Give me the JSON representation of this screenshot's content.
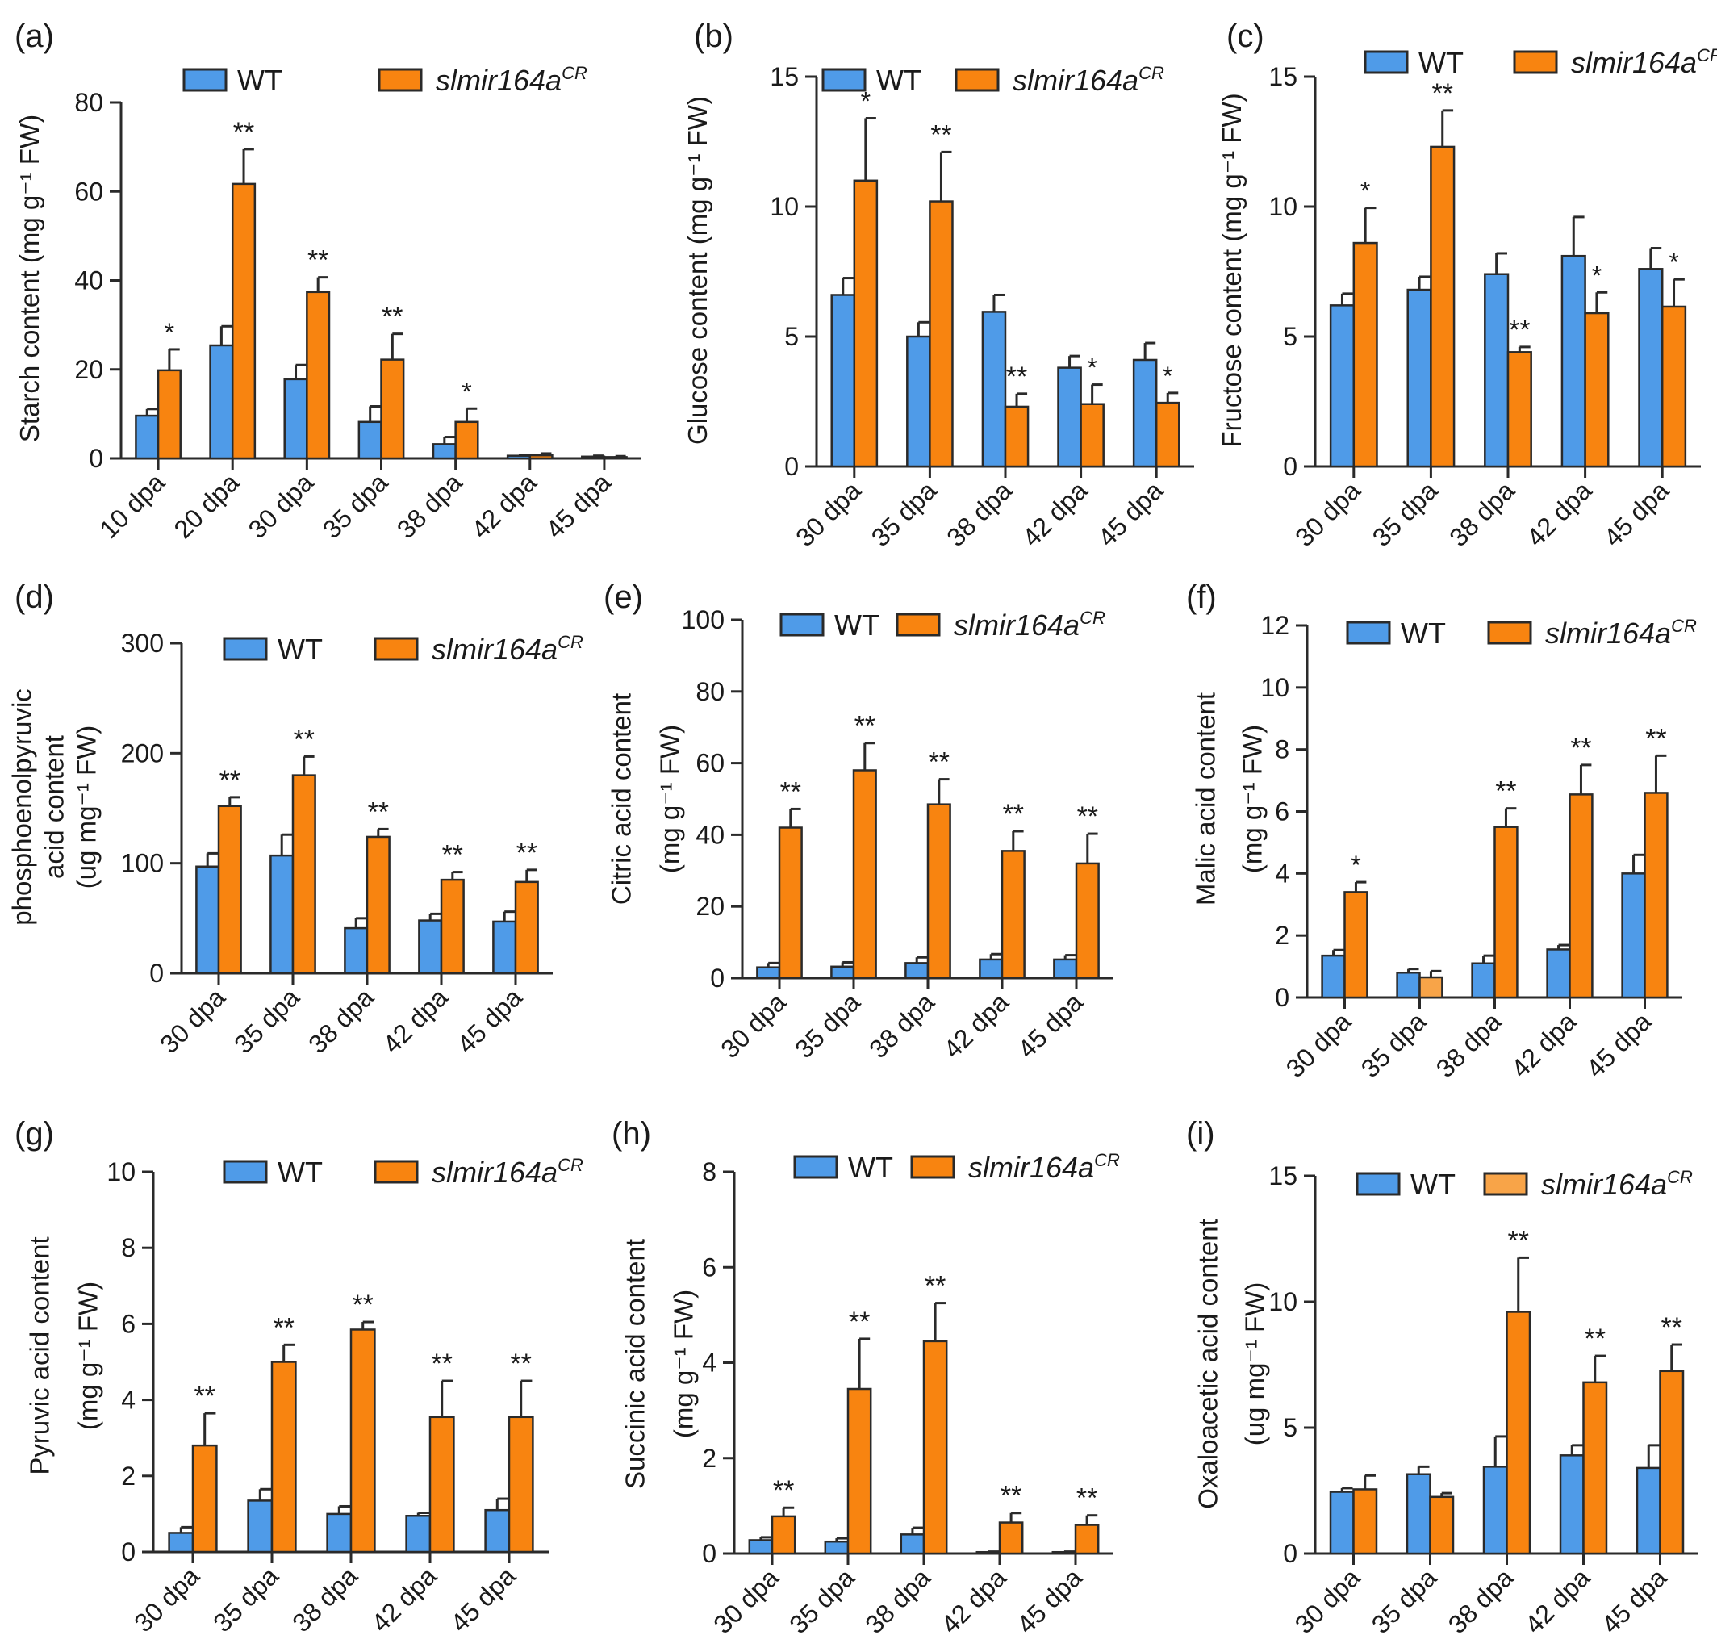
{
  "colors": {
    "wt": "#4f9be8",
    "mutant": "#f88410",
    "mutant_light": "#f8a448",
    "axis": "#2a2a2a"
  },
  "legend": {
    "wt": "WT",
    "mutant_base": "slmir164a",
    "mutant_sup": "CR"
  },
  "chart_data": [
    {
      "panel": "(a)",
      "type": "bar",
      "ylabel": "Starch content (mg g⁻¹ FW)",
      "ylim": [
        0,
        80
      ],
      "yticks": [
        0,
        20,
        40,
        60,
        80
      ],
      "categories": [
        "10 dpa",
        "20 dpa",
        "30 dpa",
        "35 dpa",
        "38 dpa",
        "42 dpa",
        "45 dpa"
      ],
      "series": [
        {
          "name": "WT",
          "values": [
            9.6,
            25.4,
            17.8,
            8.2,
            3.2,
            0.6,
            0.4
          ],
          "errors": [
            1.5,
            4.3,
            3.2,
            3.5,
            1.6,
            0.2,
            0.2
          ]
        },
        {
          "name": "slmir164aCR",
          "values": [
            19.8,
            61.7,
            37.4,
            22.2,
            8.2,
            0.7,
            0.3
          ],
          "errors": [
            4.7,
            7.8,
            3.3,
            5.8,
            3.0,
            0.4,
            0.2
          ]
        }
      ],
      "significance": [
        "*",
        "**",
        "**",
        "**",
        "*",
        "",
        ""
      ],
      "legend_position": "top"
    },
    {
      "panel": "(b)",
      "type": "bar",
      "ylabel": "Glucose content (mg g⁻¹ FW)",
      "ylim": [
        0,
        15
      ],
      "yticks": [
        0,
        5,
        10,
        15
      ],
      "categories": [
        "30 dpa",
        "35 dpa",
        "38 dpa",
        "42 dpa",
        "45 dpa"
      ],
      "series": [
        {
          "name": "WT",
          "values": [
            6.6,
            5.0,
            5.95,
            3.8,
            4.1
          ],
          "errors": [
            0.65,
            0.55,
            0.65,
            0.45,
            0.65
          ]
        },
        {
          "name": "slmir164aCR",
          "values": [
            11.0,
            10.2,
            2.3,
            2.4,
            2.45
          ],
          "errors": [
            2.4,
            1.9,
            0.5,
            0.75,
            0.38
          ]
        }
      ],
      "significance": [
        "*",
        "**",
        "**",
        "*",
        "*"
      ],
      "legend_position": "top"
    },
    {
      "panel": "(c)",
      "type": "bar",
      "ylabel": "Fructose content (mg g⁻¹ FW)",
      "ylim": [
        0,
        15
      ],
      "yticks": [
        0,
        5,
        10,
        15
      ],
      "categories": [
        "30 dpa",
        "35 dpa",
        "38 dpa",
        "42 dpa",
        "45 dpa"
      ],
      "series": [
        {
          "name": "WT",
          "values": [
            6.2,
            6.8,
            7.4,
            8.1,
            7.6
          ],
          "errors": [
            0.45,
            0.5,
            0.8,
            1.5,
            0.8
          ]
        },
        {
          "name": "slmir164aCR",
          "values": [
            8.6,
            12.3,
            4.4,
            5.9,
            6.15
          ],
          "errors": [
            1.35,
            1.4,
            0.2,
            0.8,
            1.05
          ]
        }
      ],
      "significance": [
        "*",
        "**",
        "**",
        "*",
        "*"
      ],
      "legend_position": "top"
    },
    {
      "panel": "(d)",
      "type": "bar",
      "ylabel_lines": [
        "phosphoenolpyruvic",
        "acid content",
        "(ug mg⁻¹ FW)"
      ],
      "ylim": [
        0,
        300
      ],
      "yticks": [
        0,
        100,
        200,
        300
      ],
      "categories": [
        "30 dpa",
        "35 dpa",
        "38 dpa",
        "42 dpa",
        "45 dpa"
      ],
      "series": [
        {
          "name": "WT",
          "values": [
            97,
            107,
            41,
            48,
            47
          ],
          "errors": [
            12,
            19,
            9,
            6,
            9
          ]
        },
        {
          "name": "slmir164aCR",
          "values": [
            152,
            180,
            124,
            85,
            83
          ],
          "errors": [
            8,
            17,
            7,
            7,
            11
          ]
        }
      ],
      "significance": [
        "**",
        "**",
        "**",
        "**",
        "**"
      ],
      "legend_position": "top"
    },
    {
      "panel": "(e)",
      "type": "bar",
      "ylabel_lines": [
        "Citric acid content",
        "(mg g⁻¹ FW)"
      ],
      "ylim": [
        0,
        100
      ],
      "yticks": [
        0,
        20,
        40,
        60,
        80,
        100
      ],
      "categories": [
        "30 dpa",
        "35 dpa",
        "38 dpa",
        "42 dpa",
        "45 dpa"
      ],
      "series": [
        {
          "name": "WT",
          "values": [
            3.0,
            3.2,
            4.2,
            5.2,
            5.2
          ],
          "errors": [
            1.2,
            1.2,
            1.6,
            1.5,
            1.2
          ]
        },
        {
          "name": "slmir164aCR",
          "values": [
            42,
            58,
            48.5,
            35.5,
            32
          ],
          "errors": [
            5.2,
            7.6,
            7.0,
            5.5,
            8.3
          ]
        }
      ],
      "significance": [
        "**",
        "**",
        "**",
        "**",
        "**"
      ],
      "legend_position": "top"
    },
    {
      "panel": "(f)",
      "type": "bar",
      "ylabel_lines": [
        "Malic acid content",
        "(mg g⁻¹ FW)"
      ],
      "ylim": [
        0,
        12
      ],
      "yticks": [
        0,
        2,
        4,
        6,
        8,
        10,
        12
      ],
      "categories": [
        "30 dpa",
        "35 dpa",
        "38 dpa",
        "42 dpa",
        "45 dpa"
      ],
      "series": [
        {
          "name": "WT",
          "values": [
            1.35,
            0.8,
            1.1,
            1.55,
            4.0
          ],
          "errors": [
            0.18,
            0.12,
            0.25,
            0.14,
            0.6
          ]
        },
        {
          "name": "slmir164aCR",
          "values": [
            3.4,
            0.65,
            5.5,
            6.55,
            6.6
          ],
          "errors": [
            0.32,
            0.2,
            0.6,
            0.95,
            1.2
          ]
        }
      ],
      "mutant_light_bars": [
        1
      ],
      "significance": [
        "*",
        "",
        "**",
        "**",
        "**"
      ],
      "legend_position": "top"
    },
    {
      "panel": "(g)",
      "type": "bar",
      "ylabel_lines": [
        "Pyruvic acid content",
        "(mg g⁻¹ FW)"
      ],
      "ylim": [
        0,
        10
      ],
      "yticks": [
        0,
        2,
        4,
        6,
        8,
        10
      ],
      "categories": [
        "30 dpa",
        "35 dpa",
        "38 dpa",
        "42 dpa",
        "45 dpa"
      ],
      "series": [
        {
          "name": "WT",
          "values": [
            0.5,
            1.35,
            1.0,
            0.95,
            1.1
          ],
          "errors": [
            0.15,
            0.3,
            0.2,
            0.08,
            0.3
          ]
        },
        {
          "name": "slmir164aCR",
          "values": [
            2.8,
            5.0,
            5.85,
            3.55,
            3.55
          ],
          "errors": [
            0.85,
            0.45,
            0.2,
            0.95,
            0.95
          ]
        }
      ],
      "significance": [
        "**",
        "**",
        "**",
        "**",
        "**"
      ],
      "legend_position": "top"
    },
    {
      "panel": "(h)",
      "type": "bar",
      "ylabel_lines": [
        "Succinic acid content",
        "(mg g⁻¹ FW)"
      ],
      "ylim": [
        0,
        8
      ],
      "yticks": [
        0,
        2,
        4,
        6,
        8
      ],
      "categories": [
        "30 dpa",
        "35 dpa",
        "38 dpa",
        "42 dpa",
        "45 dpa"
      ],
      "series": [
        {
          "name": "WT",
          "values": [
            0.28,
            0.25,
            0.4,
            0.03,
            0.03
          ],
          "errors": [
            0.06,
            0.07,
            0.14,
            0.01,
            0.01
          ]
        },
        {
          "name": "slmir164aCR",
          "values": [
            0.78,
            3.45,
            4.45,
            0.65,
            0.6
          ],
          "errors": [
            0.18,
            1.05,
            0.8,
            0.2,
            0.2
          ]
        }
      ],
      "significance": [
        "**",
        "**",
        "**",
        "**",
        "**"
      ],
      "legend_position": "top"
    },
    {
      "panel": "(i)",
      "type": "bar",
      "ylabel_lines": [
        "Oxaloacetic acid content",
        "(ug mg⁻¹ FW)"
      ],
      "ylim": [
        0,
        15
      ],
      "yticks": [
        0,
        5,
        10,
        15
      ],
      "categories": [
        "30 dpa",
        "35 dpa",
        "38 dpa",
        "42 dpa",
        "45 dpa"
      ],
      "series": [
        {
          "name": "WT",
          "values": [
            2.45,
            3.15,
            3.45,
            3.9,
            3.4
          ],
          "errors": [
            0.15,
            0.3,
            1.2,
            0.4,
            0.9
          ]
        },
        {
          "name": "slmir164aCR",
          "values": [
            2.55,
            2.25,
            9.6,
            6.8,
            7.25
          ],
          "errors": [
            0.55,
            0.15,
            2.15,
            1.05,
            1.05
          ]
        }
      ],
      "legend_mutant_light": true,
      "significance": [
        "",
        "",
        "**",
        "**",
        "**"
      ],
      "legend_position": "top"
    }
  ]
}
